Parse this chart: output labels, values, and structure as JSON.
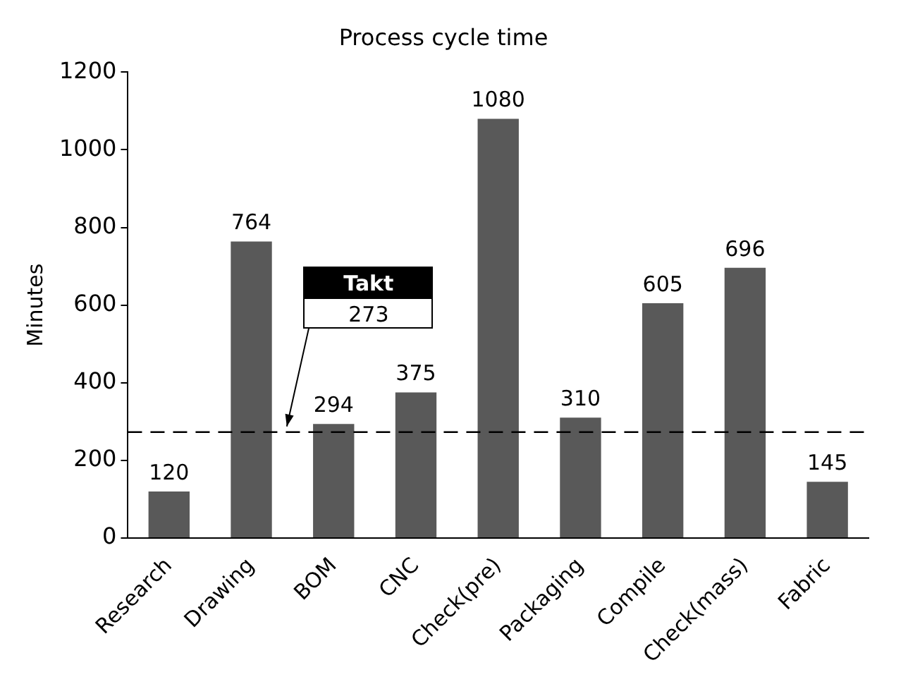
{
  "chart_data": {
    "type": "bar",
    "title": "Process cycle time",
    "ylabel": "Minutes",
    "categories": [
      "Research",
      "Drawing",
      "BOM",
      "CNC",
      "Check(pre)",
      "Packaging",
      "Compile",
      "Check(mass)",
      "Fabric"
    ],
    "values": [
      120,
      764,
      294,
      375,
      1080,
      310,
      605,
      696,
      145
    ],
    "color": "#595959",
    "ylim": [
      0,
      1200
    ],
    "yticks": [
      0,
      200,
      400,
      600,
      800,
      1000,
      1200
    ],
    "grid": false,
    "legend": false,
    "data_labels": true,
    "ref_lines": [
      {
        "axis": "y",
        "value": 273,
        "color": "#000000",
        "line_style": "dashed"
      }
    ],
    "annotations": [
      "Takt",
      "273"
    ]
  }
}
